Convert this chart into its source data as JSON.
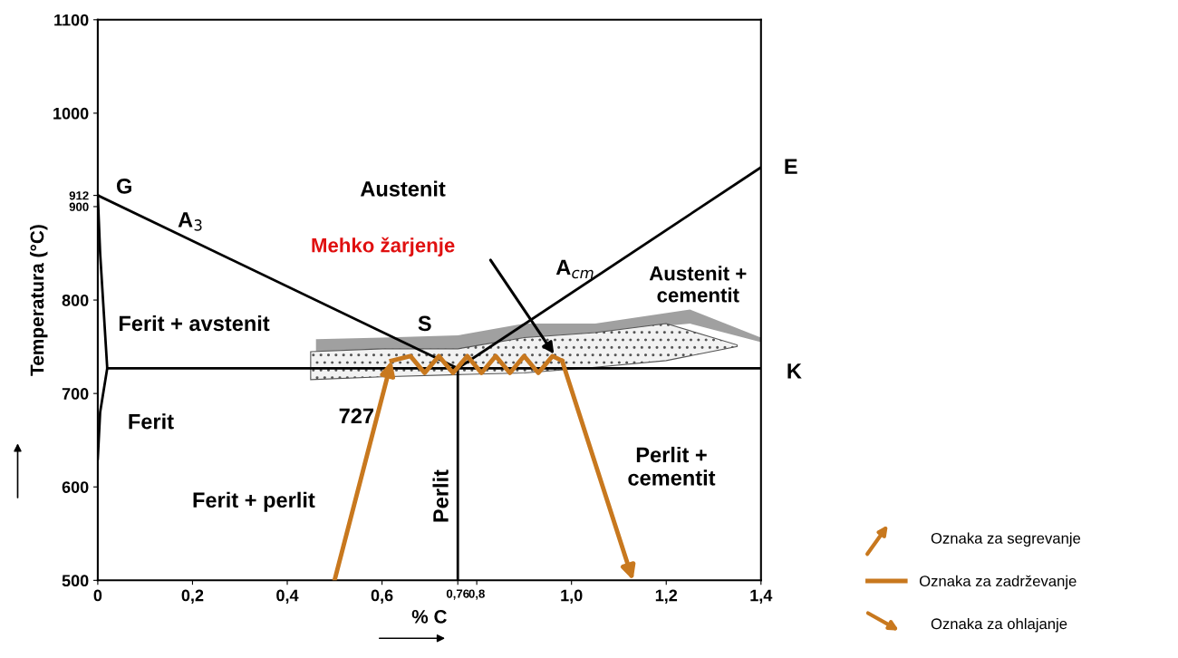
{
  "chart_data": {
    "type": "line",
    "xlabel": "% C",
    "ylabel": "Temperatura (°C)",
    "xlim": [
      0,
      1.4
    ],
    "ylim": [
      500,
      1100
    ],
    "xticks": [
      {
        "value": 0,
        "label": "0"
      },
      {
        "value": 0.2,
        "label": "0,2"
      },
      {
        "value": 0.4,
        "label": "0,4"
      },
      {
        "value": 0.6,
        "label": "0,6"
      },
      {
        "value": 0.76,
        "label": "0,76"
      },
      {
        "value": 0.8,
        "label": "0,8"
      },
      {
        "value": 1.0,
        "label": "1,0"
      },
      {
        "value": 1.2,
        "label": "1,2"
      },
      {
        "value": 1.4,
        "label": "1,4"
      }
    ],
    "yticks": [
      500,
      600,
      700,
      800,
      900,
      912,
      1000,
      1100
    ],
    "grid": false,
    "legend": "bottom right",
    "marker": "none",
    "line_style": "solid",
    "series": [
      {
        "color": "#000000",
        "x": [
          0,
          0.76
        ],
        "values": [
          912,
          727
        ]
      },
      {
        "color": "#000000",
        "x": [
          0.76,
          1.4
        ],
        "values": [
          727,
          942
        ]
      },
      {
        "color": "#000000",
        "x": [
          0.02,
          1.4
        ],
        "values": [
          727,
          727
        ]
      },
      {
        "color": "#000000",
        "x": [
          0,
          0.005,
          0.02,
          0.005,
          0
        ],
        "values": [
          912,
          850,
          727,
          680,
          630
        ]
      },
      {
        "color": "#000000",
        "x": [
          0.76,
          0.76
        ],
        "values": [
          500,
          727
        ]
      },
      {
        "name": "Oznaka za zadrževanje",
        "color": "#c8781e",
        "x": [
          0.62,
          0.66,
          0.69,
          0.72,
          0.75,
          0.78,
          0.81,
          0.84,
          0.87,
          0.9,
          0.93,
          0.96,
          0.98
        ],
        "values": [
          735,
          740,
          722,
          740,
          722,
          740,
          722,
          740,
          722,
          740,
          722,
          740,
          735
        ]
      }
    ],
    "annotations": [
      "G",
      "E",
      "K",
      "Austenit",
      "Mehko žarjenje",
      "A$_{3}$",
      "A$_{cm}$",
      "Austenit +\ncementit",
      "Ferit + avstenit",
      "S",
      "727",
      "Ferit",
      "Ferit + perlit",
      "Perlit",
      "Perlit +\ncementit",
      "Oznaka za segrevanje",
      "Oznaka za ohlajanje"
    ]
  }
}
